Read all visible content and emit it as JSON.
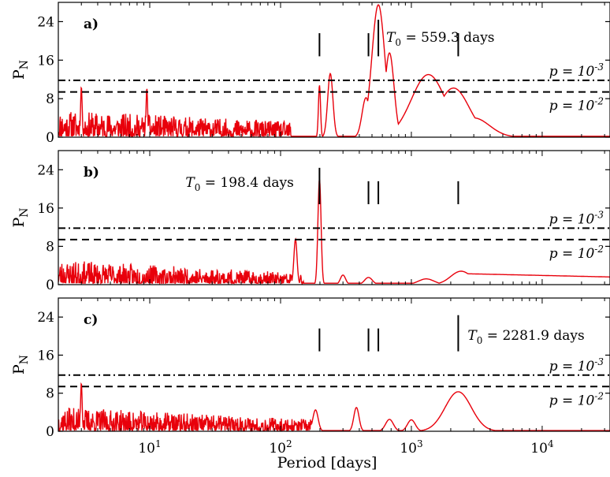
{
  "chart_data": {
    "type": "line",
    "xlabel": "Period [days]",
    "xscale": "log",
    "xlim": [
      2,
      33000
    ],
    "x_tick_labels": [
      "10^1",
      "10^2",
      "10^3",
      "10^4"
    ],
    "x_tick_values": [
      10,
      100,
      1000,
      10000
    ],
    "grid": false,
    "series_color": "#e8000b",
    "panels": [
      {
        "label": "a)",
        "ylabel": "P_N",
        "ylim": [
          0,
          28
        ],
        "y_ticks": [
          0,
          8,
          16,
          24
        ],
        "thresholds": [
          {
            "value": 11.8,
            "style": "dash-dot",
            "label": "p = 10^{-3}"
          },
          {
            "value": 9.4,
            "style": "dashed",
            "label": "p = 10^{-2}"
          }
        ],
        "markers": [
          {
            "x": 198.4,
            "ymin": 16.8,
            "ymax": 21.6
          },
          {
            "x": 470,
            "ymin": 16.8,
            "ymax": 21.6
          },
          {
            "x": 559.3,
            "ymin": 16.8,
            "ymax": 24.4
          },
          {
            "x": 2281.9,
            "ymin": 16.8,
            "ymax": 21.6
          }
        ],
        "annotation": {
          "text": "T_0 = 559.3 days",
          "x": 559.3
        },
        "peaks": [
          {
            "x": 3,
            "y": 10.5,
            "w": 0.006
          },
          {
            "x": 9.5,
            "y": 10.2,
            "w": 0.006
          },
          {
            "x": 198.4,
            "y": 10.8,
            "w": 0.008
          },
          {
            "x": 240,
            "y": 13.2,
            "w": 0.02
          },
          {
            "x": 450,
            "y": 8.2,
            "w": 0.03
          },
          {
            "x": 559.3,
            "y": 27.5,
            "w": 0.05
          },
          {
            "x": 680,
            "y": 17.5,
            "w": 0.035
          },
          {
            "x": 1350,
            "y": 13.0,
            "w": 0.13
          },
          {
            "x": 2100,
            "y": 10.2,
            "w": 0.12
          },
          {
            "x": 3000,
            "y": 4.0,
            "w": 0.12
          }
        ],
        "noise": {
          "x_end": 120,
          "start": 3.5,
          "end": 2.0,
          "seed": 11
        },
        "floor": 0.2
      },
      {
        "label": "b)",
        "ylabel": "P_N",
        "ylim": [
          0,
          28
        ],
        "y_ticks": [
          0,
          8,
          16,
          24
        ],
        "thresholds": [
          {
            "value": 11.8,
            "style": "dash-dot",
            "label": "p = 10^{-3}"
          },
          {
            "value": 9.4,
            "style": "dashed",
            "label": "p = 10^{-2}"
          }
        ],
        "markers": [
          {
            "x": 198.4,
            "ymin": 16.8,
            "ymax": 24.4
          },
          {
            "x": 470,
            "ymin": 16.8,
            "ymax": 21.6
          },
          {
            "x": 559.3,
            "ymin": 16.8,
            "ymax": 21.6
          },
          {
            "x": 2281.9,
            "ymin": 16.8,
            "ymax": 21.6
          }
        ],
        "annotation": {
          "text": "T_0 = 198.4 days",
          "x": 198.4
        },
        "peaks": [
          {
            "x": 130,
            "y": 9.5,
            "w": 0.012
          },
          {
            "x": 198.4,
            "y": 22.0,
            "w": 0.012
          },
          {
            "x": 300,
            "y": 2.0,
            "w": 0.02
          },
          {
            "x": 470,
            "y": 1.5,
            "w": 0.03
          },
          {
            "x": 1300,
            "y": 1.2,
            "w": 0.06
          },
          {
            "x": 2400,
            "y": 2.8,
            "w": 0.08
          }
        ],
        "noise": {
          "x_end": 150,
          "start": 3.2,
          "end": 1.5,
          "seed": 23
        },
        "floor": 0.3,
        "tail": {
          "x_start": 2400,
          "value": 2.3,
          "end_value": 1.6
        }
      },
      {
        "label": "c)",
        "ylabel": "P_N",
        "ylim": [
          0,
          28
        ],
        "y_ticks": [
          0,
          8,
          16,
          24
        ],
        "thresholds": [
          {
            "value": 11.8,
            "style": "dash-dot",
            "label": "p = 10^{-3}"
          },
          {
            "value": 9.4,
            "style": "dashed",
            "label": "p = 10^{-2}"
          }
        ],
        "markers": [
          {
            "x": 198.4,
            "ymin": 16.8,
            "ymax": 21.6
          },
          {
            "x": 470,
            "ymin": 16.8,
            "ymax": 21.6
          },
          {
            "x": 559.3,
            "ymin": 16.8,
            "ymax": 21.6
          },
          {
            "x": 2281.9,
            "ymin": 16.8,
            "ymax": 24.4
          }
        ],
        "annotation": {
          "text": "T_0 = 2281.9 days",
          "x": 2281.9
        },
        "peaks": [
          {
            "x": 3,
            "y": 10.2,
            "w": 0.006
          },
          {
            "x": 185,
            "y": 4.5,
            "w": 0.02
          },
          {
            "x": 380,
            "y": 5.0,
            "w": 0.02
          },
          {
            "x": 680,
            "y": 2.5,
            "w": 0.03
          },
          {
            "x": 1000,
            "y": 2.4,
            "w": 0.03
          },
          {
            "x": 2281.9,
            "y": 8.3,
            "w": 0.1
          }
        ],
        "noise": {
          "x_end": 200,
          "start": 3.2,
          "end": 1.5,
          "seed": 37
        },
        "floor": 0.15
      }
    ]
  }
}
